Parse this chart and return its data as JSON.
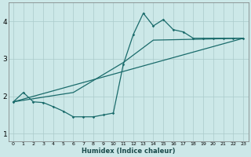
{
  "xlabel": "Humidex (Indice chaleur)",
  "bg_color": "#cce8e8",
  "grid_color": "#aacaca",
  "line_color": "#1a6b6b",
  "xlim": [
    -0.5,
    23.5
  ],
  "ylim": [
    0.8,
    4.5
  ],
  "xticks": [
    0,
    1,
    2,
    3,
    4,
    5,
    6,
    7,
    8,
    9,
    10,
    11,
    12,
    13,
    14,
    15,
    16,
    17,
    18,
    19,
    20,
    21,
    22,
    23
  ],
  "yticks": [
    1,
    2,
    3,
    4
  ],
  "jagged_x": [
    0,
    1,
    2,
    3,
    4,
    5,
    6,
    7,
    8,
    9,
    10,
    11,
    12,
    13,
    14,
    15,
    16,
    17,
    18,
    19,
    20,
    21,
    22,
    23
  ],
  "jagged_y": [
    1.85,
    2.1,
    1.85,
    1.83,
    1.72,
    1.6,
    1.45,
    1.45,
    1.45,
    1.5,
    1.55,
    2.85,
    3.65,
    4.22,
    3.88,
    4.05,
    3.78,
    3.72,
    3.55,
    3.55,
    3.55,
    3.55,
    3.55,
    3.55
  ],
  "line1_x": [
    0,
    23
  ],
  "line1_y": [
    1.85,
    3.55
  ],
  "line2_x": [
    0,
    6,
    11,
    14,
    23
  ],
  "line2_y": [
    1.85,
    2.1,
    2.9,
    3.5,
    3.55
  ]
}
